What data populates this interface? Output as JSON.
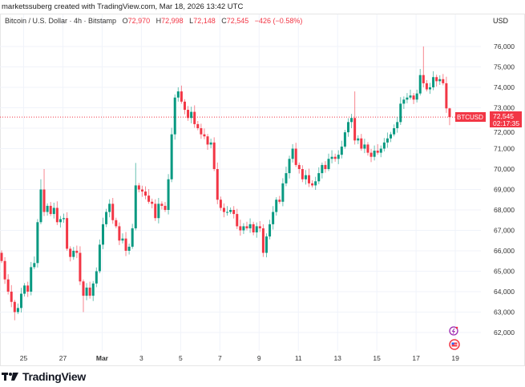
{
  "credit": "marketssuberg created with TradingView.com, Mar 18, 2026 13:42 UTC",
  "legend": {
    "symbol": "Bitcoin / U.S. Dollar · 4h · Bitstamp",
    "o_label": "O",
    "o": "72,970",
    "h_label": "H",
    "h": "72,998",
    "l_label": "L",
    "l": "72,148",
    "c_label": "C",
    "c": "72,545",
    "change": "−426 (−0.58%)"
  },
  "currency": "USD",
  "price_tag": {
    "symbol": "BTCUSD",
    "price": "72,545",
    "countdown": "02:17:35"
  },
  "brand": "TradingView",
  "colors": {
    "up": "#089981",
    "down": "#f23645",
    "grid": "#f0f3fa"
  },
  "chart_data": {
    "type": "candlestick",
    "title": "Bitcoin / U.S. Dollar · 4h · Bitstamp",
    "ylim": [
      61500,
      76600
    ],
    "yticks": [
      76000,
      75000,
      74000,
      73000,
      72000,
      71000,
      70000,
      69000,
      68000,
      67000,
      66000,
      65000,
      64000,
      63000,
      62000
    ],
    "ytick_labels": [
      "76,000",
      "75,000",
      "74,000",
      "73,000",
      "72,000",
      "71,000",
      "70,000",
      "69,000",
      "68,000",
      "67,000",
      "66,000",
      "65,000",
      "64,000",
      "63,000",
      "62,000"
    ],
    "xtick_labels": [
      "25",
      "27",
      "Mar",
      "3",
      "5",
      "7",
      "9",
      "11",
      "13",
      "15",
      "17",
      "19"
    ],
    "xtick_candle_index": [
      8,
      20,
      32,
      44,
      56,
      68,
      80,
      92,
      104,
      116,
      128,
      140
    ],
    "first_open": 65900,
    "closes": [
      65.5,
      64.6,
      64.0,
      63.5,
      63.0,
      63.2,
      63.9,
      64.3,
      64.0,
      65.2,
      65.4,
      67.4,
      69.0,
      67.9,
      68.2,
      67.8,
      68.1,
      67.4,
      67.55,
      67.6,
      66.1,
      65.7,
      66.0,
      65.9,
      64.5,
      63.8,
      64.2,
      63.8,
      64.4,
      65.0,
      66.3,
      67.3,
      67.9,
      68.3,
      67.5,
      67.2,
      66.5,
      66.6,
      66.0,
      66.2,
      67.1,
      69.2,
      69.0,
      68.9,
      68.7,
      68.4,
      68.3,
      67.6,
      68.3,
      68.2,
      68.0,
      69.5,
      71.7,
      73.5,
      73.8,
      73.3,
      72.9,
      72.5,
      72.8,
      72.2,
      72.0,
      71.7,
      71.6,
      71.2,
      71.3,
      70.0,
      68.5,
      68.1,
      67.9,
      67.9,
      68.0,
      67.8,
      67.2,
      67.0,
      67.2,
      67.1,
      67.3,
      66.9,
      67.2,
      67.1,
      65.9,
      66.7,
      67.3,
      67.9,
      68.5,
      68.4,
      69.3,
      69.8,
      70.5,
      71.0,
      70.2,
      70.0,
      69.5,
      69.7,
      69.3,
      69.2,
      69.4,
      69.8,
      70.2,
      70.0,
      70.5,
      70.6,
      70.5,
      70.7,
      71.1,
      71.8,
      72.3,
      72.5,
      71.4,
      71.5,
      71.0,
      71.2,
      70.8,
      70.6,
      70.9,
      70.8,
      71.0,
      71.3,
      71.5,
      71.7,
      72.0,
      72.3,
      73.2,
      73.4,
      73.5,
      73.6,
      73.4,
      73.7,
      74.6,
      74.2,
      73.9,
      74.0,
      74.5,
      74.3,
      74.4,
      74.2,
      72.97,
      72.545
    ],
    "close_unit": "thousand USD",
    "wick_overrides": {
      "4": [
        63.6,
        62.6
      ],
      "12": [
        69.5,
        67.3
      ],
      "13": [
        70.0,
        67.7
      ],
      "25": [
        64.6,
        63.0
      ],
      "41": [
        70.3,
        67.0
      ],
      "54": [
        74.0,
        73.3
      ],
      "80": [
        67.3,
        65.7
      ],
      "107": [
        72.7,
        72.0
      ],
      "108": [
        73.8,
        71.2
      ],
      "128": [
        74.9,
        73.6
      ],
      "129": [
        76.0,
        74.0
      ],
      "137": [
        72.998,
        72.148
      ]
    },
    "last_price": 72545
  }
}
